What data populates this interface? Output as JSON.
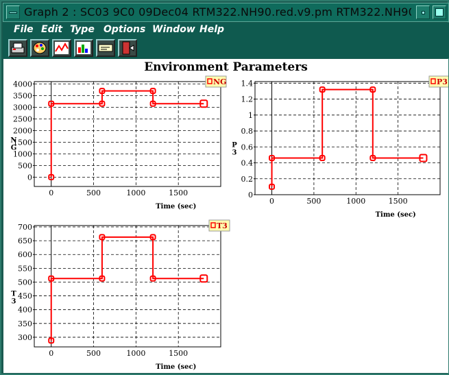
{
  "window": {
    "title": "Graph 2 : SC03   9C0 09Dec04   RTM322.NH90.red.v9.pm   RTM322.NH90.red.v9.pm   RTM3"
  },
  "menu": [
    "File",
    "Edit",
    "Type",
    "Options",
    "Window",
    "Help"
  ],
  "toolbar": [
    "print-icon",
    "palette-icon",
    "line-chart-icon",
    "color-chart-icon",
    "label-icon",
    "exit-icon"
  ],
  "page_title": "Environment Parameters",
  "colors": {
    "series": "#ff0000",
    "legend_bg": "#ffffb0"
  },
  "chart_data": [
    {
      "type": "line",
      "legend": "NG",
      "ylabel": "N\nG",
      "xlabel": "Time (sec)",
      "xlim": [
        -200,
        2000
      ],
      "ylim": [
        -400,
        4100
      ],
      "xticks": [
        0,
        500,
        1000,
        1500
      ],
      "yticks": [
        0,
        500,
        1000,
        1500,
        2000,
        2500,
        3000,
        3500,
        4000
      ],
      "x": [
        0,
        0,
        600,
        600,
        1200,
        1200,
        1800
      ],
      "y": [
        0,
        3150,
        3150,
        3700,
        3700,
        3150,
        3150
      ],
      "markers_x": [
        0,
        0,
        600,
        600,
        1200,
        1200,
        1800
      ],
      "markers_y": [
        0,
        3150,
        3150,
        3700,
        3700,
        3150,
        3150
      ]
    },
    {
      "type": "line",
      "legend": "P3",
      "ylabel": "P\n3",
      "xlabel": "Time (sec)",
      "xlim": [
        -200,
        2000
      ],
      "ylim": [
        0,
        1.42
      ],
      "xticks": [
        0,
        500,
        1000,
        1500
      ],
      "yticks": [
        0,
        0.2,
        0.4,
        0.6,
        0.8,
        1,
        1.2,
        1.4
      ],
      "x": [
        0,
        0,
        600,
        600,
        1200,
        1200,
        1800
      ],
      "y": [
        0.1,
        0.46,
        0.46,
        1.32,
        1.32,
        0.46,
        0.46
      ],
      "markers_x": [
        0,
        0,
        600,
        600,
        1200,
        1200,
        1800
      ],
      "markers_y": [
        0.1,
        0.46,
        0.46,
        1.32,
        1.32,
        0.46,
        0.46
      ]
    },
    {
      "type": "line",
      "legend": "T3",
      "ylabel": "T\n3",
      "xlabel": "Time (sec)",
      "xlim": [
        -200,
        2000
      ],
      "ylim": [
        265,
        705
      ],
      "xticks": [
        0,
        500,
        1000,
        1500
      ],
      "yticks": [
        300,
        350,
        400,
        450,
        500,
        550,
        600,
        650,
        700
      ],
      "x": [
        0,
        0,
        600,
        600,
        1200,
        1200,
        1800
      ],
      "y": [
        288,
        513,
        513,
        663,
        663,
        513,
        513
      ],
      "markers_x": [
        0,
        0,
        600,
        600,
        1200,
        1200,
        1800
      ],
      "markers_y": [
        288,
        513,
        513,
        663,
        663,
        513,
        513
      ]
    }
  ]
}
